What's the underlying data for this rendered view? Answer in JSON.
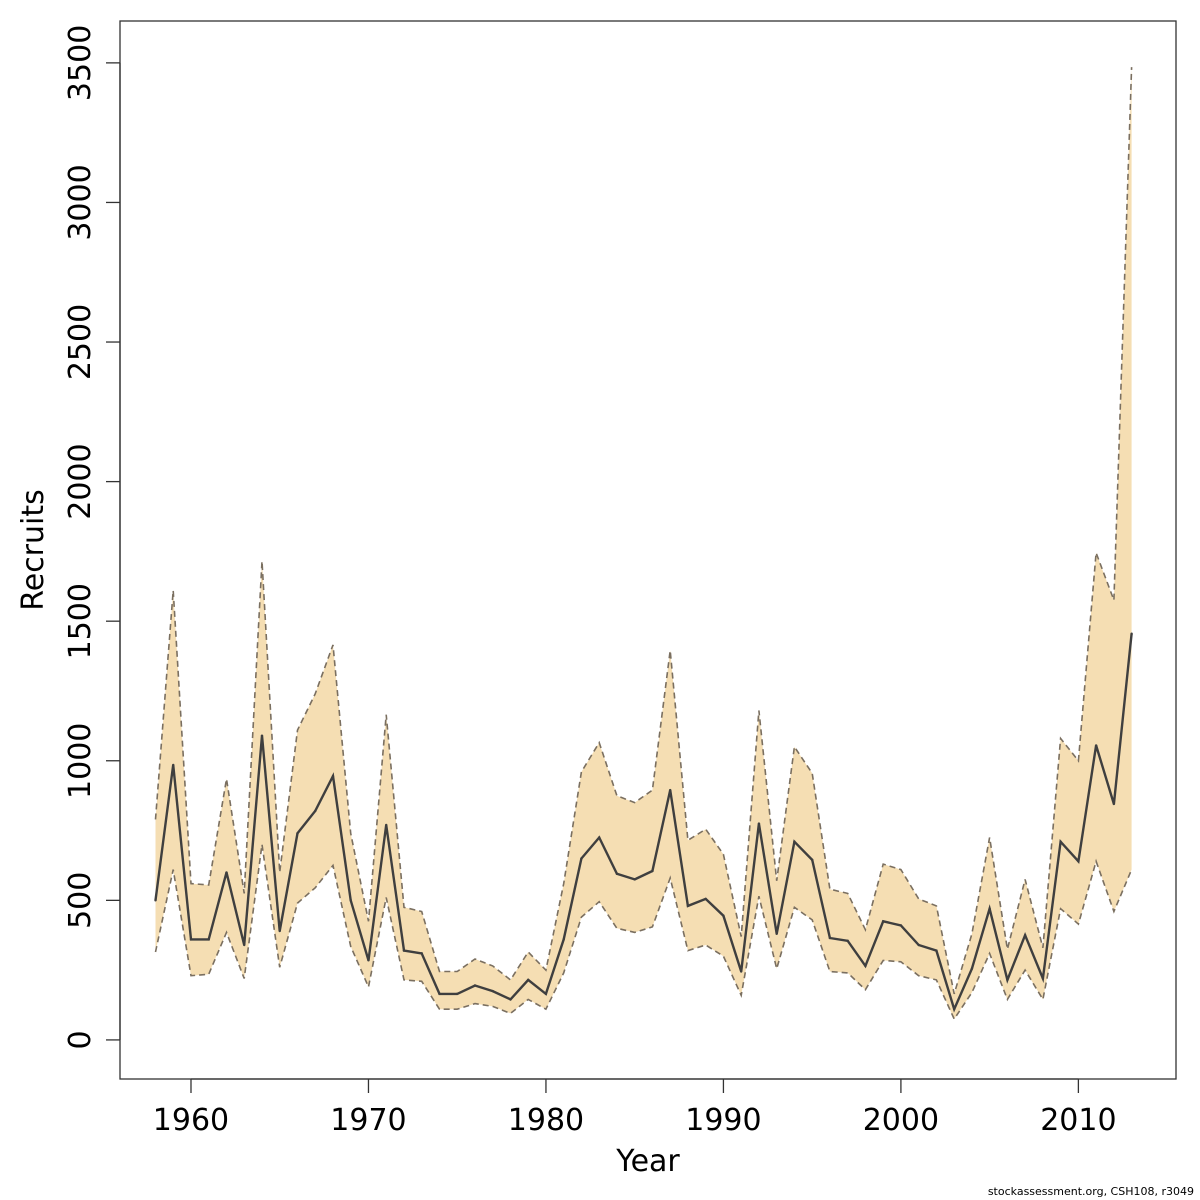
{
  "footer": "stockassessment.org, CSH108, r3049",
  "chart_data": {
    "type": "line",
    "title": "",
    "xlabel": "Year",
    "ylabel": "Recruits",
    "xlim": [
      1956,
      2015.5
    ],
    "ylim": [
      -140,
      3650
    ],
    "xticks": [
      1960,
      1970,
      1980,
      1990,
      2000,
      2010
    ],
    "yticks": [
      0,
      500,
      1000,
      1500,
      2000,
      2500,
      3000,
      3500
    ],
    "grid": false,
    "colors": {
      "band": "#F5DEB3",
      "line": "#3f3f3f",
      "bounds": "#7a6f60"
    },
    "x": [
      1958,
      1959,
      1960,
      1961,
      1962,
      1963,
      1964,
      1965,
      1966,
      1967,
      1968,
      1969,
      1970,
      1971,
      1972,
      1973,
      1974,
      1975,
      1976,
      1977,
      1978,
      1979,
      1980,
      1981,
      1982,
      1983,
      1984,
      1985,
      1986,
      1987,
      1988,
      1989,
      1990,
      1991,
      1992,
      1993,
      1994,
      1995,
      1996,
      1997,
      1998,
      1999,
      2000,
      2001,
      2002,
      2003,
      2004,
      2005,
      2006,
      2007,
      2008,
      2009,
      2010,
      2011,
      2012,
      2013
    ],
    "series": [
      {
        "role": "estimate",
        "values": [
          500,
          985,
          360,
          360,
          600,
          340,
          1090,
          390,
          740,
          820,
          945,
          500,
          285,
          770,
          320,
          310,
          165,
          165,
          195,
          175,
          145,
          215,
          165,
          360,
          650,
          725,
          595,
          575,
          605,
          895,
          480,
          505,
          445,
          245,
          775,
          380,
          710,
          645,
          365,
          355,
          265,
          425,
          410,
          340,
          320,
          110,
          255,
          470,
          215,
          375,
          220,
          710,
          640,
          1055,
          845,
          1455
        ]
      },
      {
        "role": "upper",
        "values": [
          790,
          1610,
          560,
          555,
          935,
          525,
          1715,
          600,
          1110,
          1240,
          1415,
          740,
          425,
          1165,
          475,
          460,
          245,
          245,
          290,
          265,
          215,
          315,
          250,
          560,
          960,
          1065,
          875,
          850,
          895,
          1395,
          715,
          755,
          665,
          370,
          1180,
          570,
          1050,
          955,
          540,
          525,
          395,
          630,
          610,
          505,
          480,
          165,
          380,
          725,
          325,
          575,
          330,
          1080,
          1000,
          1745,
          1575,
          3485
        ]
      },
      {
        "role": "lower",
        "values": [
          315,
          610,
          230,
          235,
          385,
          220,
          700,
          260,
          490,
          545,
          625,
          335,
          190,
          510,
          215,
          210,
          110,
          110,
          130,
          120,
          95,
          145,
          110,
          240,
          440,
          495,
          400,
          385,
          405,
          580,
          320,
          340,
          300,
          160,
          515,
          255,
          475,
          430,
          245,
          240,
          180,
          285,
          280,
          230,
          215,
          75,
          170,
          310,
          145,
          250,
          145,
          470,
          415,
          640,
          460,
          610
        ]
      }
    ]
  }
}
